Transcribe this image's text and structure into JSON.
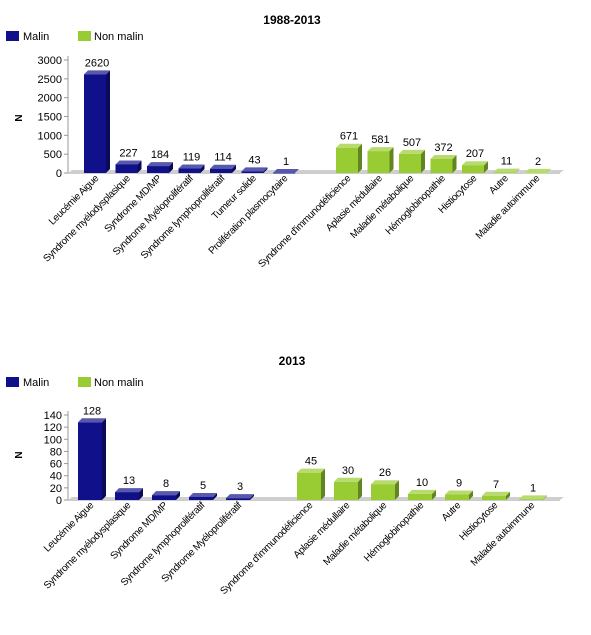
{
  "chart_data": [
    {
      "type": "bar",
      "title": "1988-2013",
      "ylabel": "N",
      "ylim": [
        0,
        3000
      ],
      "yticks": [
        0,
        500,
        1000,
        1500,
        2000,
        2500,
        3000
      ],
      "grid": false,
      "legend_position": "top-left",
      "series": [
        {
          "name": "Malin",
          "color": "#10108a",
          "categories": [
            "Leucémie Aigue",
            "Syndrome myélodysplasique",
            "Syndrome MD/MP",
            "Syndrome Myéloprolifératif",
            "Syndrome lymphoprolifératif",
            "Tumeur solide",
            "Prolifération plasmocytaire"
          ],
          "values": [
            2620,
            227,
            184,
            119,
            114,
            43,
            1
          ]
        },
        {
          "name": "Non malin",
          "color": "#99cc33",
          "categories": [
            "Syndrome d'immunodéficience",
            "Aplasie médullaire",
            "Maladie métabolique",
            "Hémoglobinopathie",
            "Histiocytose",
            "Autre",
            "Maladie autoimmune"
          ],
          "values": [
            671,
            581,
            507,
            372,
            207,
            11,
            2
          ]
        }
      ]
    },
    {
      "type": "bar",
      "title": "2013",
      "ylabel": "N",
      "ylim": [
        0,
        140
      ],
      "yticks": [
        0,
        20,
        40,
        60,
        80,
        100,
        120,
        140
      ],
      "grid": false,
      "legend_position": "top-left",
      "series": [
        {
          "name": "Malin",
          "color": "#10108a",
          "categories": [
            "Leucémie Aigue",
            "Syndrome myélodysplasique",
            "Syndrome MD/MP",
            "Syndrome lymphoprolifératif",
            "Syndrome Myéloprolifératif"
          ],
          "values": [
            128,
            13,
            8,
            5,
            3
          ]
        },
        {
          "name": "Non malin",
          "color": "#99cc33",
          "categories": [
            "Syndrome d'immunodéficience",
            "Aplasie médullaire",
            "Maladie métabolique",
            "Hémoglobinopathie",
            "Autre",
            "Histiocytose",
            "Maladie autoimmune"
          ],
          "values": [
            45,
            30,
            26,
            10,
            9,
            7,
            1
          ]
        }
      ]
    }
  ]
}
